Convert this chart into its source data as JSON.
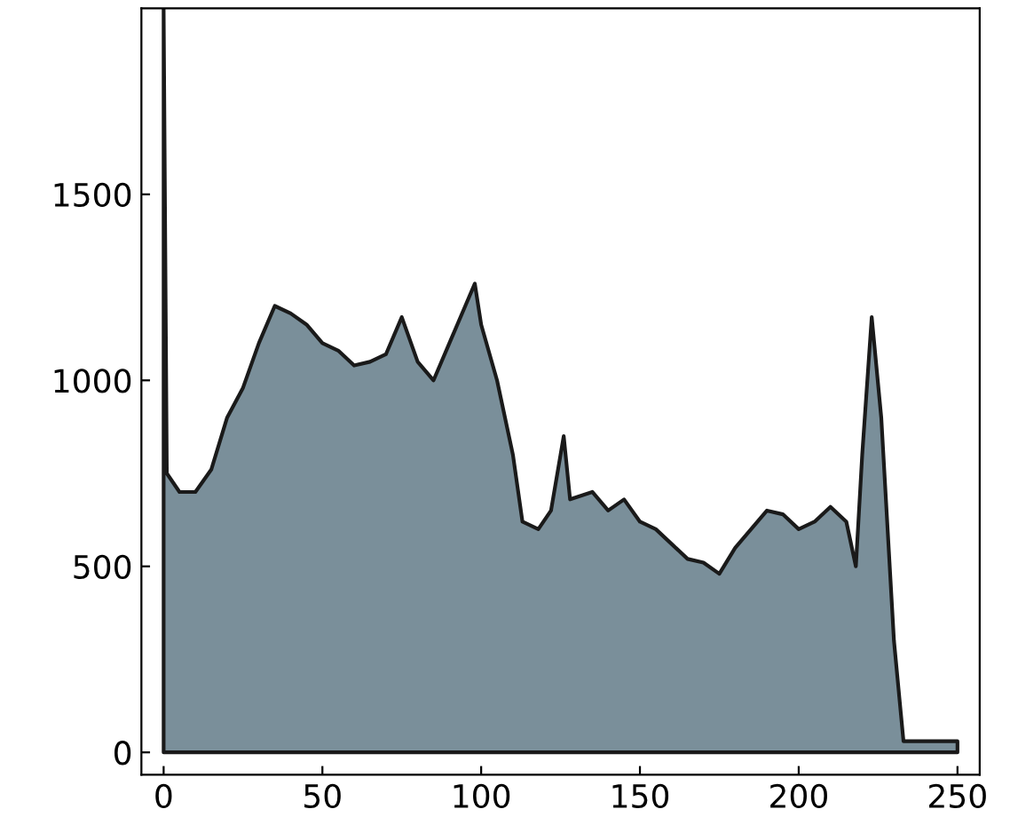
{
  "chart_data": {
    "type": "area",
    "x": [
      0,
      1,
      5,
      10,
      15,
      20,
      25,
      30,
      35,
      40,
      45,
      50,
      55,
      60,
      65,
      70,
      75,
      80,
      85,
      90,
      95,
      98,
      100,
      105,
      110,
      113,
      118,
      122,
      126,
      128,
      135,
      140,
      145,
      150,
      155,
      160,
      165,
      170,
      175,
      180,
      185,
      190,
      195,
      200,
      205,
      210,
      215,
      218,
      220,
      223,
      226,
      230,
      233,
      235,
      250
    ],
    "series": [
      {
        "color": "#7a8f9a",
        "values": [
          2000,
          750,
          700,
          700,
          760,
          900,
          980,
          1100,
          1200,
          1180,
          1150,
          1100,
          1080,
          1040,
          1050,
          1070,
          1170,
          1050,
          1000,
          1100,
          1200,
          1260,
          1150,
          1000,
          800,
          620,
          600,
          650,
          850,
          680,
          700,
          650,
          680,
          620,
          600,
          560,
          520,
          510,
          480,
          550,
          600,
          650,
          640,
          600,
          620,
          660,
          620,
          500,
          800,
          1170,
          900,
          300,
          30,
          30,
          30
        ]
      }
    ],
    "xlim": [
      -7,
      257
    ],
    "ylim": [
      -60,
      2000
    ],
    "xticks": [
      0,
      50,
      100,
      150,
      200,
      250
    ],
    "yticks": [
      0,
      500,
      1000,
      1500
    ],
    "grid": false,
    "legend": false
  }
}
